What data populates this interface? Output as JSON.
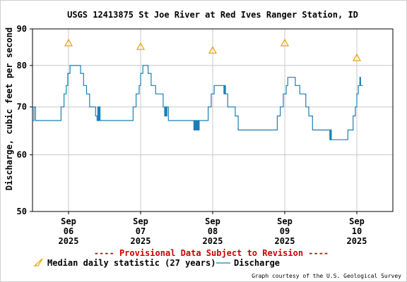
{
  "chart_data": {
    "type": "line",
    "title": "USGS 12413875 St Joe River at Red Ives Ranger Station, ID",
    "ylabel": "Discharge, cubic feet per second",
    "xlabel": "",
    "y_scale": "log",
    "ylim": [
      50,
      90
    ],
    "yticks": [
      50,
      60,
      70,
      80,
      90
    ],
    "xlim": [
      "2025-09-05 12:00",
      "2025-09-10 12:00"
    ],
    "xticks": [
      {
        "x": "2025-09-06 00:00",
        "month": "Sep",
        "day": "06",
        "year": "2025"
      },
      {
        "x": "2025-09-07 00:00",
        "month": "Sep",
        "day": "07",
        "year": "2025"
      },
      {
        "x": "2025-09-08 00:00",
        "month": "Sep",
        "day": "08",
        "year": "2025"
      },
      {
        "x": "2025-09-09 00:00",
        "month": "Sep",
        "day": "09",
        "year": "2025"
      },
      {
        "x": "2025-09-10 00:00",
        "month": "Sep",
        "day": "10",
        "year": "2025"
      }
    ],
    "grid": true,
    "legend_position": "bottom",
    "annotation": "---- Provisional Data Subject to Revision ----",
    "credit": "Graph courtesy of the U.S. Geological Survey",
    "colors": {
      "discharge": "#1a7fb5",
      "median": "#e8a400",
      "provisional": "#cc0000",
      "grid": "#c8c8c8"
    },
    "series": [
      {
        "name": "Median daily statistic (27 years)",
        "marker": "triangle",
        "points": [
          {
            "x": "2025-09-06 00:00",
            "y": 86
          },
          {
            "x": "2025-09-07 00:00",
            "y": 85
          },
          {
            "x": "2025-09-08 00:00",
            "y": 84
          },
          {
            "x": "2025-09-09 00:00",
            "y": 86
          },
          {
            "x": "2025-09-10 00:00",
            "y": 82
          }
        ]
      },
      {
        "name": "Discharge",
        "marker": "line",
        "points": [
          {
            "x": "2025-09-05 12:00",
            "y": 67
          },
          {
            "x": "2025-09-05 12:30",
            "y": 70
          },
          {
            "x": "2025-09-05 13:00",
            "y": 67
          },
          {
            "x": "2025-09-05 18:00",
            "y": 67
          },
          {
            "x": "2025-09-05 21:00",
            "y": 67
          },
          {
            "x": "2025-09-05 21:30",
            "y": 70
          },
          {
            "x": "2025-09-05 22:30",
            "y": 73
          },
          {
            "x": "2025-09-05 23:15",
            "y": 75
          },
          {
            "x": "2025-09-05 23:45",
            "y": 78
          },
          {
            "x": "2025-09-06 00:30",
            "y": 80
          },
          {
            "x": "2025-09-06 03:00",
            "y": 80
          },
          {
            "x": "2025-09-06 04:00",
            "y": 78
          },
          {
            "x": "2025-09-06 05:00",
            "y": 75
          },
          {
            "x": "2025-09-06 06:00",
            "y": 73
          },
          {
            "x": "2025-09-06 07:00",
            "y": 70
          },
          {
            "x": "2025-09-06 09:00",
            "y": 68
          },
          {
            "x": "2025-09-06 09:30",
            "y": 67
          },
          {
            "x": "2025-09-06 09:45",
            "y": 70
          },
          {
            "x": "2025-09-06 10:00",
            "y": 67
          },
          {
            "x": "2025-09-06 10:15",
            "y": 70
          },
          {
            "x": "2025-09-06 10:30",
            "y": 67
          },
          {
            "x": "2025-09-06 21:00",
            "y": 67
          },
          {
            "x": "2025-09-06 21:30",
            "y": 70
          },
          {
            "x": "2025-09-06 22:30",
            "y": 73
          },
          {
            "x": "2025-09-06 23:30",
            "y": 75
          },
          {
            "x": "2025-09-07 00:00",
            "y": 78
          },
          {
            "x": "2025-09-07 00:45",
            "y": 80
          },
          {
            "x": "2025-09-07 01:30",
            "y": 80
          },
          {
            "x": "2025-09-07 02:30",
            "y": 78
          },
          {
            "x": "2025-09-07 03:30",
            "y": 75
          },
          {
            "x": "2025-09-07 05:00",
            "y": 73
          },
          {
            "x": "2025-09-07 07:30",
            "y": 70
          },
          {
            "x": "2025-09-07 08:00",
            "y": 68
          },
          {
            "x": "2025-09-07 08:15",
            "y": 70
          },
          {
            "x": "2025-09-07 08:30",
            "y": 68
          },
          {
            "x": "2025-09-07 08:45",
            "y": 70
          },
          {
            "x": "2025-09-07 09:15",
            "y": 67
          },
          {
            "x": "2025-09-07 17:30",
            "y": 67
          },
          {
            "x": "2025-09-07 17:45",
            "y": 65
          },
          {
            "x": "2025-09-07 18:00",
            "y": 67
          },
          {
            "x": "2025-09-07 18:15",
            "y": 65
          },
          {
            "x": "2025-09-07 18:30",
            "y": 67
          },
          {
            "x": "2025-09-07 18:45",
            "y": 65
          },
          {
            "x": "2025-09-07 19:00",
            "y": 67
          },
          {
            "x": "2025-09-07 19:15",
            "y": 65
          },
          {
            "x": "2025-09-07 19:30",
            "y": 67
          },
          {
            "x": "2025-09-07 21:45",
            "y": 67
          },
          {
            "x": "2025-09-07 22:30",
            "y": 70
          },
          {
            "x": "2025-09-07 23:30",
            "y": 73
          },
          {
            "x": "2025-09-08 00:30",
            "y": 75
          },
          {
            "x": "2025-09-08 03:30",
            "y": 75
          },
          {
            "x": "2025-09-08 03:45",
            "y": 73
          },
          {
            "x": "2025-09-08 04:00",
            "y": 75
          },
          {
            "x": "2025-09-08 04:15",
            "y": 73
          },
          {
            "x": "2025-09-08 05:00",
            "y": 70
          },
          {
            "x": "2025-09-08 07:30",
            "y": 68
          },
          {
            "x": "2025-09-08 08:30",
            "y": 65
          },
          {
            "x": "2025-09-08 20:45",
            "y": 65
          },
          {
            "x": "2025-09-08 21:30",
            "y": 68
          },
          {
            "x": "2025-09-08 22:30",
            "y": 70
          },
          {
            "x": "2025-09-08 23:30",
            "y": 73
          },
          {
            "x": "2025-09-09 00:30",
            "y": 75
          },
          {
            "x": "2025-09-09 01:00",
            "y": 77
          },
          {
            "x": "2025-09-09 02:30",
            "y": 77
          },
          {
            "x": "2025-09-09 03:30",
            "y": 75
          },
          {
            "x": "2025-09-09 05:00",
            "y": 73
          },
          {
            "x": "2025-09-09 07:00",
            "y": 70
          },
          {
            "x": "2025-09-09 08:00",
            "y": 68
          },
          {
            "x": "2025-09-09 09:15",
            "y": 65
          },
          {
            "x": "2025-09-09 14:30",
            "y": 65
          },
          {
            "x": "2025-09-09 15:00",
            "y": 63
          },
          {
            "x": "2025-09-09 15:15",
            "y": 65
          },
          {
            "x": "2025-09-09 15:30",
            "y": 63
          },
          {
            "x": "2025-09-09 20:30",
            "y": 63
          },
          {
            "x": "2025-09-09 21:00",
            "y": 65
          },
          {
            "x": "2025-09-09 22:45",
            "y": 68
          },
          {
            "x": "2025-09-09 23:30",
            "y": 70
          },
          {
            "x": "2025-09-10 00:00",
            "y": 73
          },
          {
            "x": "2025-09-10 00:30",
            "y": 75
          },
          {
            "x": "2025-09-10 01:00",
            "y": 77
          },
          {
            "x": "2025-09-10 01:15",
            "y": 75
          },
          {
            "x": "2025-09-10 02:00",
            "y": 75
          }
        ]
      }
    ]
  }
}
